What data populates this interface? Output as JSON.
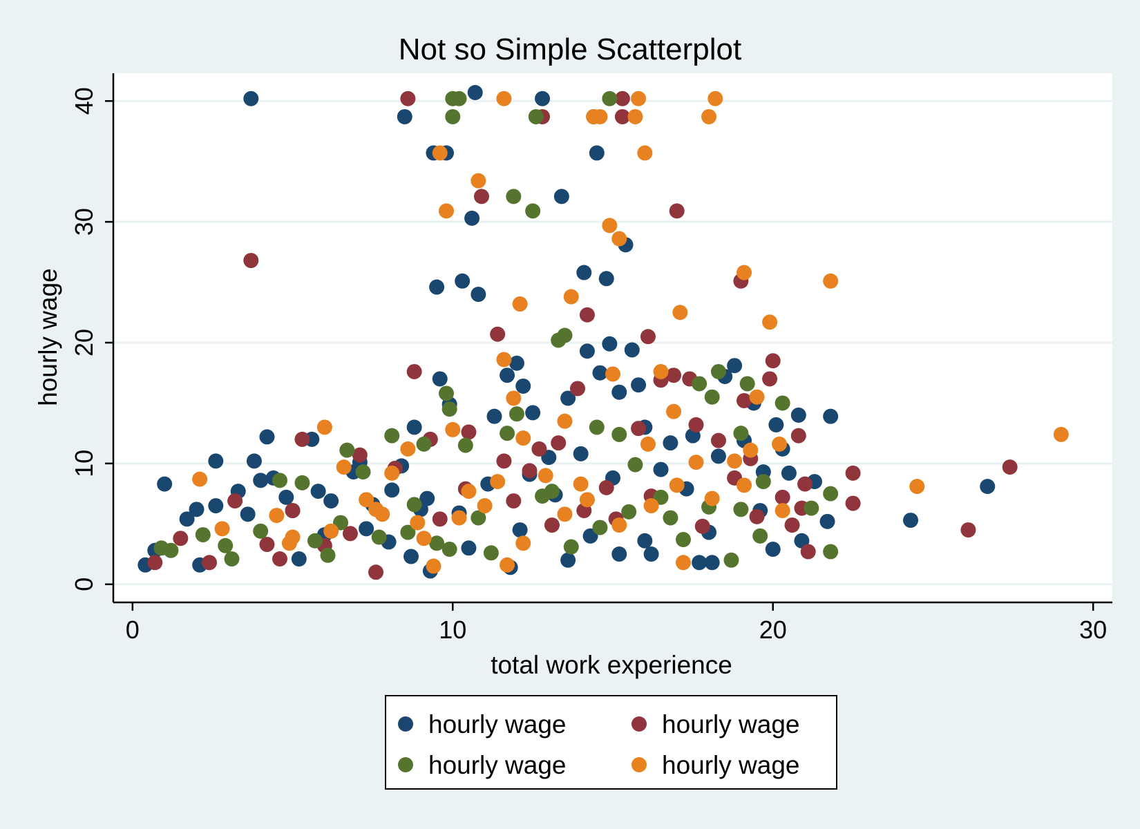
{
  "chart_data": {
    "type": "scatter",
    "title": "Not so Simple Scatterplot",
    "xlabel": "total work experience",
    "ylabel": "hourly wage",
    "xlim": [
      -0.6,
      30.6
    ],
    "ylim": [
      -1.5,
      42.3
    ],
    "xticks": [
      "0",
      "10",
      "20",
      "30"
    ],
    "xtick_values": [
      0,
      10,
      20,
      30
    ],
    "yticks": [
      "0",
      "10",
      "20",
      "30",
      "40"
    ],
    "ytick_values": [
      0,
      10,
      20,
      30,
      40
    ],
    "grid": "horizontal",
    "legend_position": "bottom",
    "plot_background": "#ffffff",
    "page_background": "#eaf2f3",
    "series": [
      {
        "name": "hourly wage",
        "color": "#1a476f",
        "points": [
          [
            0.4,
            1.6
          ],
          [
            0.7,
            2.8
          ],
          [
            1.0,
            8.3
          ],
          [
            1.7,
            5.4
          ],
          [
            2.0,
            6.2
          ],
          [
            2.1,
            1.6
          ],
          [
            2.6,
            6.5
          ],
          [
            2.6,
            10.2
          ],
          [
            3.3,
            7.7
          ],
          [
            3.6,
            5.8
          ],
          [
            3.7,
            40.2
          ],
          [
            3.8,
            10.2
          ],
          [
            4.0,
            8.6
          ],
          [
            4.2,
            12.2
          ],
          [
            4.4,
            8.8
          ],
          [
            4.8,
            7.2
          ],
          [
            5.0,
            6.1
          ],
          [
            5.2,
            2.1
          ],
          [
            5.6,
            12.0
          ],
          [
            5.8,
            7.7
          ],
          [
            6.2,
            6.9
          ],
          [
            6.9,
            9.3
          ],
          [
            7.1,
            10.1
          ],
          [
            7.5,
            6.6
          ],
          [
            8.1,
            7.8
          ],
          [
            8.4,
            9.8
          ],
          [
            8.5,
            38.7
          ],
          [
            8.8,
            13.0
          ],
          [
            9.2,
            7.1
          ],
          [
            9.3,
            1.1
          ],
          [
            9.4,
            35.7
          ],
          [
            9.5,
            24.6
          ],
          [
            9.6,
            17.0
          ],
          [
            9.8,
            35.7
          ],
          [
            9.9,
            14.9
          ],
          [
            10.3,
            25.1
          ],
          [
            10.6,
            30.3
          ],
          [
            10.7,
            40.7
          ],
          [
            10.8,
            24.0
          ],
          [
            11.3,
            13.9
          ],
          [
            11.7,
            17.3
          ],
          [
            12.0,
            18.3
          ],
          [
            12.2,
            16.4
          ],
          [
            12.5,
            14.2
          ],
          [
            12.8,
            40.2
          ],
          [
            13.0,
            10.5
          ],
          [
            13.4,
            32.1
          ],
          [
            13.6,
            15.4
          ],
          [
            14.1,
            25.8
          ],
          [
            14.2,
            19.3
          ],
          [
            14.4,
            38.7
          ],
          [
            14.5,
            35.7
          ],
          [
            14.6,
            17.5
          ],
          [
            14.8,
            25.3
          ],
          [
            14.9,
            19.9
          ],
          [
            15.2,
            15.9
          ],
          [
            15.4,
            28.1
          ],
          [
            15.6,
            19.4
          ],
          [
            15.8,
            16.5
          ],
          [
            16.0,
            13.0
          ],
          [
            16.2,
            2.5
          ],
          [
            16.8,
            11.7
          ],
          [
            17.5,
            12.3
          ],
          [
            17.7,
            1.8
          ],
          [
            18.1,
            1.8
          ],
          [
            18.5,
            17.2
          ],
          [
            18.8,
            18.1
          ],
          [
            19.1,
            11.9
          ],
          [
            19.4,
            15.0
          ],
          [
            19.7,
            9.3
          ],
          [
            20.1,
            13.2
          ],
          [
            20.3,
            11.2
          ],
          [
            20.5,
            9.2
          ],
          [
            20.8,
            14.0
          ],
          [
            20.9,
            3.6
          ],
          [
            21.3,
            8.5
          ],
          [
            21.7,
            5.2
          ],
          [
            21.8,
            13.9
          ],
          [
            24.3,
            5.3
          ],
          [
            26.7,
            8.1
          ],
          [
            6.0,
            4.1
          ],
          [
            7.3,
            4.6
          ],
          [
            8.0,
            3.5
          ],
          [
            9.0,
            6.2
          ],
          [
            10.2,
            5.9
          ],
          [
            11.1,
            8.3
          ],
          [
            12.4,
            9.1
          ],
          [
            13.2,
            7.4
          ],
          [
            14.0,
            10.8
          ],
          [
            15.0,
            8.8
          ],
          [
            16.5,
            9.5
          ],
          [
            17.3,
            7.9
          ],
          [
            18.3,
            10.6
          ],
          [
            19.6,
            6.1
          ],
          [
            10.5,
            3.0
          ],
          [
            12.1,
            4.5
          ],
          [
            14.3,
            4.0
          ],
          [
            16.0,
            3.6
          ],
          [
            18.0,
            4.3
          ],
          [
            20.0,
            2.9
          ],
          [
            8.7,
            2.3
          ],
          [
            11.8,
            1.4
          ],
          [
            13.6,
            2.0
          ],
          [
            15.2,
            2.5
          ]
        ]
      },
      {
        "name": "hourly wage",
        "color": "#90353b",
        "points": [
          [
            0.7,
            1.8
          ],
          [
            1.5,
            3.8
          ],
          [
            2.4,
            1.8
          ],
          [
            3.2,
            6.9
          ],
          [
            3.7,
            26.8
          ],
          [
            4.6,
            2.1
          ],
          [
            5.3,
            12.0
          ],
          [
            6.0,
            3.2
          ],
          [
            7.1,
            10.7
          ],
          [
            7.6,
            1.0
          ],
          [
            8.2,
            9.6
          ],
          [
            8.6,
            40.2
          ],
          [
            8.8,
            17.6
          ],
          [
            9.3,
            12.0
          ],
          [
            10.5,
            12.6
          ],
          [
            10.9,
            32.1
          ],
          [
            11.4,
            20.7
          ],
          [
            11.6,
            10.2
          ],
          [
            12.4,
            9.4
          ],
          [
            12.8,
            38.7
          ],
          [
            13.3,
            11.7
          ],
          [
            13.9,
            16.2
          ],
          [
            14.2,
            22.3
          ],
          [
            14.8,
            8.0
          ],
          [
            15.3,
            40.2
          ],
          [
            15.3,
            38.7
          ],
          [
            15.8,
            12.9
          ],
          [
            16.1,
            20.5
          ],
          [
            16.5,
            16.9
          ],
          [
            16.9,
            17.3
          ],
          [
            17.0,
            30.9
          ],
          [
            17.4,
            17.0
          ],
          [
            17.8,
            4.8
          ],
          [
            18.3,
            11.9
          ],
          [
            18.8,
            8.8
          ],
          [
            19.0,
            25.1
          ],
          [
            19.1,
            15.2
          ],
          [
            19.5,
            5.6
          ],
          [
            19.9,
            17.0
          ],
          [
            20.0,
            18.5
          ],
          [
            20.3,
            7.2
          ],
          [
            20.6,
            4.9
          ],
          [
            20.8,
            12.3
          ],
          [
            21.0,
            8.3
          ],
          [
            21.1,
            2.7
          ],
          [
            22.5,
            9.2
          ],
          [
            22.5,
            6.7
          ],
          [
            26.1,
            4.5
          ],
          [
            27.4,
            9.7
          ],
          [
            13.1,
            4.9
          ],
          [
            14.1,
            6.1
          ],
          [
            15.1,
            5.4
          ],
          [
            16.2,
            7.3
          ],
          [
            9.6,
            5.4
          ],
          [
            10.4,
            7.9
          ],
          [
            11.9,
            6.9
          ],
          [
            6.8,
            4.2
          ],
          [
            5.0,
            6.1
          ],
          [
            4.2,
            3.3
          ],
          [
            12.7,
            11.2
          ],
          [
            17.6,
            13.2
          ],
          [
            19.3,
            10.4
          ],
          [
            20.9,
            6.3
          ]
        ]
      },
      {
        "name": "hourly wage",
        "color": "#55752f",
        "points": [
          [
            0.9,
            3.0
          ],
          [
            1.2,
            2.8
          ],
          [
            2.2,
            4.1
          ],
          [
            3.1,
            2.1
          ],
          [
            4.0,
            4.4
          ],
          [
            4.6,
            8.6
          ],
          [
            5.3,
            8.4
          ],
          [
            6.1,
            2.4
          ],
          [
            6.7,
            11.1
          ],
          [
            7.2,
            9.3
          ],
          [
            8.1,
            12.3
          ],
          [
            8.8,
            6.6
          ],
          [
            9.1,
            11.6
          ],
          [
            9.8,
            15.8
          ],
          [
            9.9,
            14.5
          ],
          [
            10.0,
            40.2
          ],
          [
            10.2,
            40.2
          ],
          [
            10.0,
            38.7
          ],
          [
            10.4,
            11.5
          ],
          [
            11.7,
            12.5
          ],
          [
            11.9,
            32.1
          ],
          [
            12.0,
            14.1
          ],
          [
            12.5,
            30.9
          ],
          [
            12.6,
            38.7
          ],
          [
            13.3,
            20.2
          ],
          [
            13.5,
            20.6
          ],
          [
            14.5,
            13.0
          ],
          [
            14.9,
            40.2
          ],
          [
            15.2,
            12.4
          ],
          [
            15.7,
            9.9
          ],
          [
            16.5,
            7.2
          ],
          [
            17.2,
            3.7
          ],
          [
            17.7,
            16.6
          ],
          [
            18.1,
            15.5
          ],
          [
            18.3,
            17.6
          ],
          [
            18.7,
            2.0
          ],
          [
            19.0,
            12.5
          ],
          [
            19.2,
            16.6
          ],
          [
            19.6,
            4.0
          ],
          [
            19.7,
            8.5
          ],
          [
            20.3,
            15.0
          ],
          [
            21.2,
            6.3
          ],
          [
            21.8,
            7.5
          ],
          [
            21.8,
            2.7
          ],
          [
            2.9,
            3.2
          ],
          [
            5.7,
            3.6
          ],
          [
            6.5,
            5.1
          ],
          [
            7.7,
            3.9
          ],
          [
            8.6,
            4.3
          ],
          [
            9.5,
            3.4
          ],
          [
            10.8,
            5.5
          ],
          [
            12.8,
            7.3
          ],
          [
            13.7,
            3.1
          ],
          [
            14.6,
            4.7
          ],
          [
            15.5,
            6.0
          ],
          [
            16.8,
            5.5
          ],
          [
            18.0,
            6.4
          ],
          [
            19.0,
            6.2
          ],
          [
            11.2,
            2.6
          ],
          [
            9.9,
            2.9
          ],
          [
            13.1,
            7.7
          ]
        ]
      },
      {
        "name": "hourly wage",
        "color": "#e8811f",
        "points": [
          [
            2.1,
            8.7
          ],
          [
            2.8,
            4.6
          ],
          [
            4.5,
            5.7
          ],
          [
            4.9,
            3.4
          ],
          [
            6.0,
            13.0
          ],
          [
            6.6,
            9.7
          ],
          [
            7.3,
            7.0
          ],
          [
            7.8,
            5.8
          ],
          [
            8.1,
            9.2
          ],
          [
            8.6,
            11.2
          ],
          [
            9.1,
            3.8
          ],
          [
            9.4,
            1.5
          ],
          [
            9.6,
            35.7
          ],
          [
            9.8,
            30.9
          ],
          [
            10.0,
            12.8
          ],
          [
            10.5,
            7.7
          ],
          [
            10.8,
            33.4
          ],
          [
            11.4,
            8.5
          ],
          [
            11.6,
            40.2
          ],
          [
            11.6,
            18.6
          ],
          [
            11.9,
            15.4
          ],
          [
            12.1,
            23.2
          ],
          [
            12.2,
            12.1
          ],
          [
            12.9,
            9.0
          ],
          [
            13.5,
            13.5
          ],
          [
            13.7,
            23.8
          ],
          [
            14.0,
            8.3
          ],
          [
            14.4,
            38.7
          ],
          [
            14.6,
            38.7
          ],
          [
            14.9,
            29.7
          ],
          [
            15.0,
            17.4
          ],
          [
            15.2,
            28.6
          ],
          [
            15.7,
            38.7
          ],
          [
            15.8,
            40.2
          ],
          [
            16.0,
            35.7
          ],
          [
            16.1,
            11.6
          ],
          [
            16.5,
            17.6
          ],
          [
            16.9,
            14.3
          ],
          [
            17.1,
            22.5
          ],
          [
            17.2,
            1.8
          ],
          [
            17.6,
            10.1
          ],
          [
            18.0,
            38.7
          ],
          [
            18.2,
            40.2
          ],
          [
            18.8,
            10.2
          ],
          [
            19.1,
            25.8
          ],
          [
            19.3,
            11.1
          ],
          [
            19.5,
            15.5
          ],
          [
            19.9,
            21.7
          ],
          [
            20.2,
            11.6
          ],
          [
            20.3,
            6.1
          ],
          [
            21.8,
            25.1
          ],
          [
            24.5,
            8.1
          ],
          [
            29.0,
            12.4
          ],
          [
            11.7,
            1.6
          ],
          [
            12.2,
            3.4
          ],
          [
            13.5,
            5.8
          ],
          [
            14.2,
            7.0
          ],
          [
            15.2,
            4.9
          ],
          [
            16.2,
            6.5
          ],
          [
            17.0,
            8.2
          ],
          [
            18.1,
            7.1
          ],
          [
            19.1,
            8.2
          ],
          [
            10.2,
            5.5
          ],
          [
            11.0,
            6.5
          ],
          [
            8.9,
            5.1
          ],
          [
            7.6,
            6.2
          ],
          [
            6.2,
            4.4
          ],
          [
            5.0,
            3.9
          ]
        ]
      }
    ],
    "legend": [
      {
        "label": "hourly wage",
        "color": "#1a476f"
      },
      {
        "label": "hourly wage",
        "color": "#90353b"
      },
      {
        "label": "hourly wage",
        "color": "#55752f"
      },
      {
        "label": "hourly wage",
        "color": "#e8811f"
      }
    ]
  }
}
